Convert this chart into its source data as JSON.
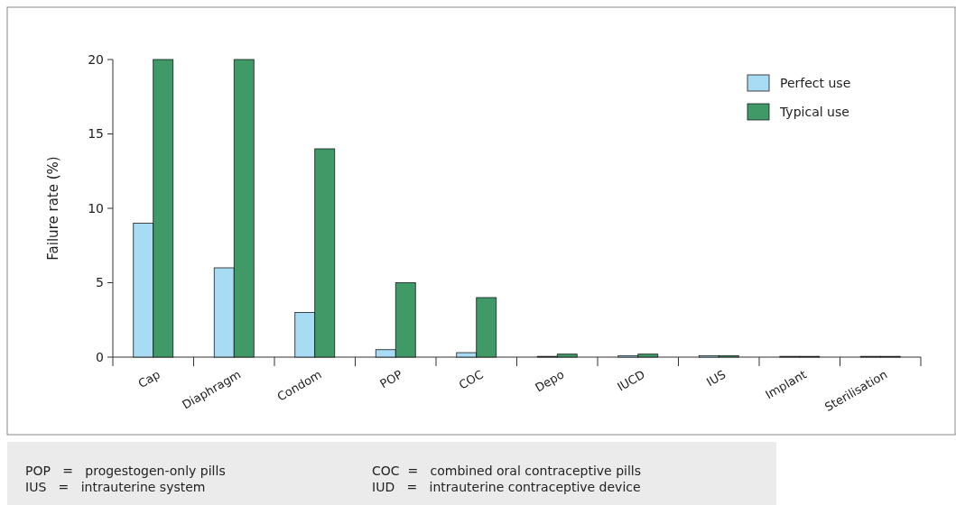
{
  "chart_data": {
    "type": "bar",
    "ylabel": "Failure rate (%)",
    "categories": [
      "Cap",
      "Diaphragm",
      "Condom",
      "POP",
      "COC",
      "Depo",
      "IUCD",
      "IUS",
      "Implant",
      "Sterilisation"
    ],
    "series": [
      {
        "name": "Perfect use",
        "color": "#a8dcf5",
        "values": [
          9,
          6,
          3,
          0.5,
          0.3,
          0.05,
          0.1,
          0.1,
          0.05,
          0.05
        ]
      },
      {
        "name": "Typical use",
        "color": "#3f9a68",
        "values": [
          20,
          20,
          14,
          5,
          4,
          0.2,
          0.2,
          0.1,
          0.05,
          0.05
        ]
      }
    ],
    "ylim": [
      0,
      20
    ],
    "yticks": [
      0,
      5,
      10,
      15,
      20
    ],
    "grid": false,
    "legend": "top right",
    "annotations": [
      "POP   =   progestogen-only pills",
      "IUS   =   intrauterine system",
      "COC  =   combined oral contraceptive pills",
      "IUD   =   intrauterine contraceptive device"
    ]
  }
}
